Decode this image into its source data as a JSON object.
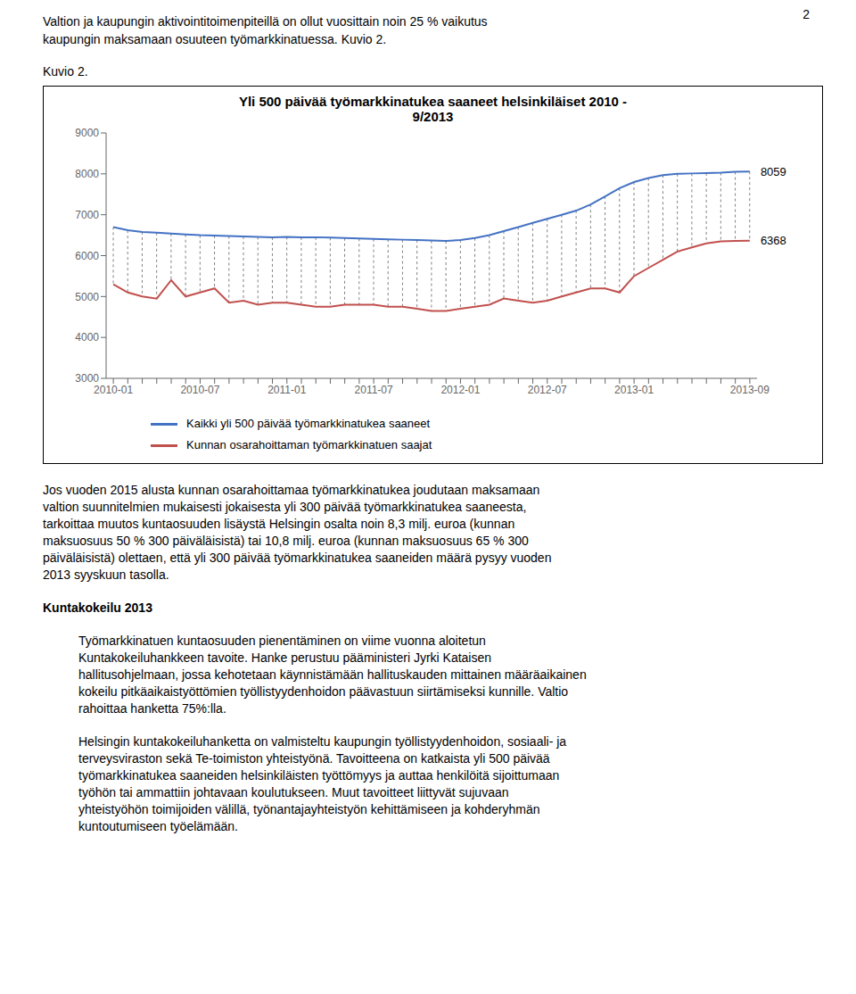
{
  "page_number": "2",
  "header_lines": [
    "Valtion ja kaupungin aktivointitoimenpiteillä on ollut vuosittain noin 25 % vaikutus",
    "kaupungin maksamaan osuuteen työmarkkinatuessa. Kuvio 2."
  ],
  "figure_label": "Kuvio 2.",
  "chart_data": {
    "type": "line",
    "title": "Yli 500 päivää työmarkkinatukea saaneet helsinkiläiset 2010 -\n9/2013",
    "categories": [
      "2010-01",
      null,
      null,
      null,
      null,
      null,
      "2010-07",
      null,
      null,
      null,
      null,
      null,
      "2011-01",
      null,
      null,
      null,
      null,
      null,
      "2011-07",
      null,
      null,
      null,
      null,
      null,
      "2012-01",
      null,
      null,
      null,
      null,
      null,
      "2012-07",
      null,
      null,
      null,
      null,
      null,
      "2013-01",
      null,
      null,
      null,
      null,
      null,
      null,
      null,
      "2013-09"
    ],
    "series": [
      {
        "name": "Kaikki yli 500 päivää työmarkkinatukea saaneet",
        "color": "#4472C4",
        "values": [
          6700,
          6620,
          6580,
          6560,
          6540,
          6520,
          6500,
          6490,
          6480,
          6470,
          6460,
          6450,
          6460,
          6450,
          6450,
          6440,
          6430,
          6420,
          6410,
          6400,
          6390,
          6380,
          6370,
          6360,
          6380,
          6430,
          6500,
          6600,
          6700,
          6800,
          6900,
          7000,
          7100,
          7250,
          7450,
          7650,
          7800,
          7900,
          7970,
          8000,
          8010,
          8020,
          8030,
          8050,
          8059
        ]
      },
      {
        "name": "Kunnan osarahoittaman työmarkkinatuen saajat",
        "color": "#C0504D",
        "values": [
          5300,
          5100,
          5000,
          4950,
          5400,
          5000,
          5100,
          5200,
          4850,
          4900,
          4800,
          4850,
          4850,
          4800,
          4750,
          4750,
          4800,
          4800,
          4800,
          4750,
          4750,
          4700,
          4650,
          4650,
          4700,
          4750,
          4800,
          4950,
          4900,
          4850,
          4900,
          5000,
          5100,
          5200,
          5200,
          5100,
          5500,
          5700,
          5900,
          6100,
          6200,
          6300,
          6350,
          6360,
          6368
        ]
      }
    ],
    "ylim": [
      3000,
      9000
    ],
    "yticks": [
      3000,
      4000,
      5000,
      6000,
      7000,
      8000,
      9000
    ],
    "grid": false,
    "legend": "bottom",
    "annotations": [
      {
        "text": "8059",
        "x": 44,
        "y": 8059
      },
      {
        "text": "6368",
        "x": 44,
        "y": 6368
      }
    ]
  },
  "paragraphs": [
    {
      "indent": false,
      "bold": false,
      "lines": [
        "Jos vuoden 2015 alusta kunnan osarahoittamaa työmarkkinatukea joudutaan maksamaan",
        "valtion suunnitelmien mukaisesti jokaisesta yli 300 päivää työmarkkinatukea saaneesta,",
        "tarkoittaa muutos kuntaosuuden lisäystä Helsingin osalta noin 8,3 milj. euroa (kunnan",
        "maksuosuus 50 % 300 päiväläisistä) tai 10,8 milj. euroa (kunnan maksuosuus 65 % 300",
        "päiväläisistä) olettaen, että yli 300 päivää työmarkkinatukea saaneiden määrä pysyy vuoden",
        "2013 syyskuun tasolla."
      ]
    },
    {
      "indent": false,
      "bold": true,
      "lines": [
        "Kuntakokeilu 2013"
      ]
    },
    {
      "indent": true,
      "bold": false,
      "lines": [
        "Työmarkkinatuen kuntaosuuden pienentäminen on viime vuonna aloitetun",
        "Kuntakokeiluhankkeen tavoite. Hanke perustuu pääministeri Jyrki Kataisen",
        "hallitusohjelmaan, jossa kehotetaan käynnistämään hallituskauden mittainen määräaikainen",
        "kokeilu pitkäaikaistyöttömien työllistyydenhoidon päävastuun siirtämiseksi kunnille. Valtio",
        "rahoittaa hanketta 75%:lla."
      ]
    },
    {
      "indent": true,
      "bold": false,
      "lines": [
        "Helsingin kuntakokeiluhanketta on valmisteltu kaupungin työllistyydenhoidon, sosiaali- ja",
        "terveysviraston sekä Te-toimiston yhteistyönä. Tavoitteena on katkaista yli 500 päivää",
        "työmarkkinatukea saaneiden helsinkiläisten työttömyys ja auttaa henkilöitä sijoittumaan",
        "työhön tai ammattiin johtavaan koulutukseen. Muut tavoitteet liittyvät sujuvaan",
        "yhteistyöhön toimijoiden välillä, työnantajayhteistyön kehittämiseen ja kohderyhmän",
        "kuntoutumiseen työelämään."
      ]
    }
  ]
}
